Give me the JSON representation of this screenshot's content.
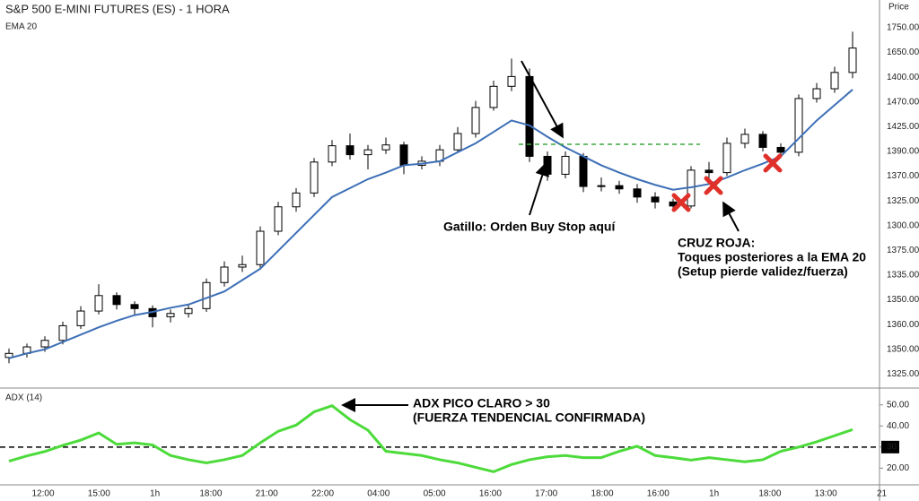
{
  "chart_data": [
    {
      "type": "candlestick",
      "title": "S&P 500 E-MINI FUTURES (ES) - 1 HORA",
      "y_axis_title": "Price",
      "y_axis_labels": [
        "1750.00",
        "1650.00",
        "1400.00",
        "1470.00",
        "1425.00",
        "1390.00",
        "1370.00",
        "1325.00",
        "1300.00",
        "1375.00",
        "1335.00",
        "1350.00",
        "1360.00",
        "1350.00",
        "1325.00"
      ],
      "x_labels": [
        "12:00",
        "15:00",
        "1h",
        "18:00",
        "21:00",
        "22:00",
        "04:00",
        "05:00",
        "16:00",
        "17:00",
        "18:00",
        "16:00",
        "1h",
        "18:00",
        "13:00",
        "21"
      ],
      "ylim": [
        1308.5,
        1784
      ],
      "up_color": "#ffffff",
      "down_color": "#000000",
      "open": [
        1345,
        1350,
        1358,
        1366,
        1384,
        1402,
        1421,
        1410,
        1405,
        1395,
        1399,
        1405,
        1437,
        1456,
        1459,
        1500,
        1530,
        1547,
        1585,
        1605,
        1594,
        1600,
        1606,
        1581,
        1586,
        1600,
        1620,
        1652,
        1678,
        1690,
        1592,
        1570,
        1592,
        1555,
        1556,
        1552,
        1542,
        1536,
        1531,
        1575,
        1572,
        1608,
        1619,
        1603,
        1597,
        1663,
        1675,
        1695
      ],
      "high": [
        1356,
        1362,
        1371,
        1389,
        1408,
        1435,
        1425,
        1414,
        1409,
        1404,
        1410,
        1442,
        1463,
        1470,
        1506,
        1536,
        1553,
        1590,
        1612,
        1620,
        1606,
        1615,
        1610,
        1592,
        1606,
        1628,
        1660,
        1685,
        1712,
        1700,
        1598,
        1598,
        1596,
        1566,
        1562,
        1558,
        1548,
        1540,
        1580,
        1585,
        1615,
        1626,
        1623,
        1608,
        1668,
        1682,
        1702,
        1745
      ],
      "low": [
        1338,
        1345,
        1352,
        1361,
        1380,
        1398,
        1404,
        1398,
        1382,
        1388,
        1394,
        1401,
        1432,
        1450,
        1455,
        1495,
        1524,
        1542,
        1580,
        1588,
        1576,
        1595,
        1570,
        1576,
        1580,
        1596,
        1615,
        1648,
        1672,
        1585,
        1562,
        1565,
        1548,
        1549,
        1546,
        1535,
        1528,
        1524,
        1528,
        1565,
        1568,
        1602,
        1598,
        1590,
        1592,
        1658,
        1670,
        1688
      ],
      "close": [
        1350,
        1358,
        1366,
        1384,
        1402,
        1421,
        1410,
        1405,
        1395,
        1399,
        1405,
        1437,
        1456,
        1459,
        1500,
        1530,
        1547,
        1585,
        1605,
        1594,
        1600,
        1606,
        1581,
        1586,
        1600,
        1620,
        1652,
        1678,
        1690,
        1592,
        1570,
        1592,
        1555,
        1556,
        1552,
        1542,
        1536,
        1531,
        1575,
        1572,
        1608,
        1619,
        1603,
        1597,
        1663,
        1675,
        1695,
        1725
      ],
      "series": [
        {
          "name": "EMA 20",
          "color": "#3d6fb6",
          "values": [
            1344,
            1350,
            1355,
            1364,
            1373,
            1382,
            1390,
            1397,
            1401,
            1406,
            1410,
            1418,
            1426,
            1440,
            1454,
            1476,
            1498,
            1520,
            1542,
            1553,
            1564,
            1572,
            1581,
            1583,
            1586,
            1597,
            1608,
            1622,
            1636,
            1630,
            1616,
            1603,
            1592,
            1581,
            1572,
            1564,
            1557,
            1551,
            1554,
            1558,
            1566,
            1575,
            1583,
            1592,
            1614,
            1636,
            1655,
            1674
          ]
        }
      ],
      "annotations": [
        "Gatillo: Orden Buy Stop aquí",
        "CRUZ ROJA:",
        "Toques posteriores a la EMA 20",
        "(Setup pierde validez/fuerza)"
      ]
    },
    {
      "type": "line",
      "title": "ADX (14)",
      "series": [
        {
          "color": "#4cdb3a",
          "values": [
            23.3,
            25.8,
            27.9,
            30.8,
            33.3,
            36.7,
            31.3,
            32,
            31,
            26,
            24,
            22.5,
            24,
            26,
            32,
            37.5,
            40.4,
            46.7,
            49.6,
            43,
            38,
            28,
            27,
            26,
            24,
            22.5,
            20.4,
            18.3,
            21.7,
            24,
            25.4,
            26,
            25,
            25,
            28,
            30.4,
            26,
            25,
            23.8,
            25,
            24,
            23,
            24,
            28,
            30,
            32.5,
            35.4,
            38.3
          ]
        }
      ],
      "ylim": [
        12.5,
        56.7
      ],
      "yticks": [
        {
          "value": 50,
          "label": "50.00"
        },
        {
          "value": 40,
          "label": "40.00"
        },
        30,
        {
          "value": 20,
          "label": "20.00"
        }
      ],
      "reference_line": 30,
      "annotations": [
        "ADX PICO CLARO > 30",
        "(FUERZA TENDENCIAL CONFIRMADA)"
      ]
    }
  ]
}
